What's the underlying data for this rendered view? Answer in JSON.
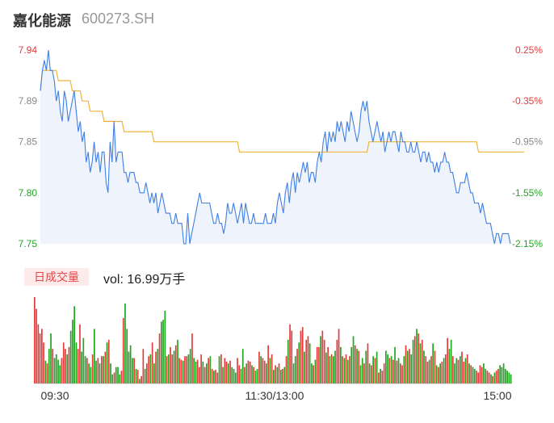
{
  "header": {
    "name": "嘉化能源",
    "code": "600273.SH"
  },
  "volume_panel": {
    "tab_label": "日成交量",
    "vol_text": "vol: 16.99万手"
  },
  "colors": {
    "price_line": "#3f7fe6",
    "price_fill": "#eef3fc",
    "avg_line": "#f0b43c",
    "up": "#e33b3b",
    "down": "#1fa51f",
    "neutral_label": "#888888"
  },
  "chart_data": [
    {
      "type": "line",
      "title": "嘉化能源 600273.SH",
      "xlabel": "",
      "ylabel": "",
      "x_ticks": [
        "09:30",
        "11:30/13:00",
        "15:00"
      ],
      "y_ticks": [
        "7.94",
        "7.89",
        "7.85",
        "7.80",
        "7.75"
      ],
      "y2_ticks": [
        "0.25%",
        "-0.35%",
        "-0.95%",
        "-1.55%",
        "-2.15%"
      ],
      "ylim": [
        7.75,
        7.94
      ],
      "prev_close": 7.92,
      "grid": false,
      "series": [
        {
          "values": [
            7.9,
            7.92,
            7.93,
            7.92,
            7.94,
            7.92,
            7.92,
            7.91,
            7.89,
            7.9,
            7.88,
            7.87,
            7.9,
            7.89,
            7.87,
            7.88,
            7.89,
            7.9,
            7.88,
            7.86,
            7.87,
            7.85,
            7.86,
            7.83,
            7.84,
            7.82,
            7.83,
            7.85,
            7.83,
            7.84,
            7.82,
            7.84,
            7.84,
            7.81,
            7.8,
            7.85,
            7.83,
            7.87,
            7.83,
            7.84,
            7.84,
            7.84,
            7.82,
            7.82,
            7.81,
            7.82,
            7.82,
            7.82,
            7.81,
            7.81,
            7.8,
            7.8,
            7.8,
            7.81,
            7.8,
            7.79,
            7.8,
            7.79,
            7.8,
            7.78,
            7.79,
            7.8,
            7.79,
            7.78,
            7.78,
            7.78,
            7.77,
            7.77,
            7.78,
            7.77,
            7.77,
            7.77,
            7.75,
            7.75,
            7.78,
            7.75,
            7.76,
            7.77,
            7.78,
            7.79,
            7.8,
            7.79,
            7.79,
            7.79,
            7.79,
            7.79,
            7.78,
            7.77,
            7.77,
            7.78,
            7.77,
            7.77,
            7.76,
            7.77,
            7.79,
            7.78,
            7.78,
            7.79,
            7.78,
            7.77,
            7.78,
            7.79,
            7.77,
            7.79,
            7.78,
            7.77,
            7.77,
            7.78,
            7.77,
            7.77,
            7.77,
            7.77,
            7.77,
            7.78,
            7.77,
            7.77,
            7.77,
            7.78,
            7.77,
            7.79,
            7.8,
            7.79,
            7.78,
            7.8,
            7.81,
            7.79,
            7.81,
            7.82,
            7.8,
            7.82,
            7.81,
            7.82,
            7.83,
            7.82,
            7.83,
            7.81,
            7.82,
            7.82,
            7.81,
            7.83,
            7.84,
            7.83,
            7.85,
            7.86,
            7.84,
            7.86,
            7.85,
            7.86,
            7.85,
            7.87,
            7.86,
            7.87,
            7.86,
            7.85,
            7.87,
            7.86,
            7.88,
            7.87,
            7.86,
            7.85,
            7.86,
            7.88,
            7.89,
            7.88,
            7.89,
            7.87,
            7.86,
            7.85,
            7.86,
            7.87,
            7.86,
            7.85,
            7.86,
            7.84,
            7.85,
            7.86,
            7.85,
            7.86,
            7.86,
            7.85,
            7.84,
            7.86,
            7.85,
            7.85,
            7.84,
            7.84,
            7.85,
            7.84,
            7.84,
            7.85,
            7.84,
            7.83,
            7.84,
            7.84,
            7.83,
            7.84,
            7.83,
            7.83,
            7.82,
            7.83,
            7.82,
            7.83,
            7.83,
            7.84,
            7.83,
            7.83,
            7.82,
            7.82,
            7.81,
            7.8,
            7.8,
            7.81,
            7.81,
            7.81,
            7.82,
            7.81,
            7.8,
            7.8,
            7.79,
            7.79,
            7.79,
            7.78,
            7.79,
            7.78,
            7.77,
            7.77,
            7.77,
            7.76,
            7.75,
            7.76,
            7.76,
            7.75,
            7.76,
            7.76,
            7.76,
            7.76,
            7.75
          ]
        },
        {
          "values": [
            7.9,
            7.92,
            7.92,
            7.92,
            7.92,
            7.92,
            7.92,
            7.92,
            7.92,
            7.91,
            7.91,
            7.91,
            7.91,
            7.91,
            7.91,
            7.91,
            7.9,
            7.9,
            7.9,
            7.9,
            7.9,
            7.89,
            7.89,
            7.89,
            7.89,
            7.88,
            7.88,
            7.88,
            7.88,
            7.88,
            7.88,
            7.88,
            7.87,
            7.87,
            7.87,
            7.87,
            7.87,
            7.87,
            7.87,
            7.87,
            7.87,
            7.87,
            7.86,
            7.86,
            7.86,
            7.86,
            7.86,
            7.86,
            7.86,
            7.86,
            7.86,
            7.86,
            7.86,
            7.86,
            7.86,
            7.86,
            7.86,
            7.85,
            7.85,
            7.85,
            7.85,
            7.85,
            7.85,
            7.85,
            7.85,
            7.85,
            7.85,
            7.85,
            7.85,
            7.85,
            7.85,
            7.85,
            7.85,
            7.85,
            7.85,
            7.85,
            7.85,
            7.85,
            7.85,
            7.85,
            7.85,
            7.85,
            7.85,
            7.85,
            7.85,
            7.85,
            7.85,
            7.85,
            7.85,
            7.85,
            7.85,
            7.85,
            7.85,
            7.85,
            7.85,
            7.85,
            7.85,
            7.85,
            7.85,
            7.85,
            7.84,
            7.84,
            7.84,
            7.84,
            7.84,
            7.84,
            7.84,
            7.84,
            7.84,
            7.84,
            7.84,
            7.84,
            7.84,
            7.84,
            7.84,
            7.84,
            7.84,
            7.84,
            7.84,
            7.84,
            7.84,
            7.84,
            7.84,
            7.84,
            7.84,
            7.84,
            7.84,
            7.84,
            7.84,
            7.84,
            7.84,
            7.84,
            7.84,
            7.84,
            7.84,
            7.84,
            7.84,
            7.84,
            7.84,
            7.84,
            7.84,
            7.84,
            7.84,
            7.84,
            7.84,
            7.84,
            7.84,
            7.84,
            7.84,
            7.84,
            7.84,
            7.84,
            7.84,
            7.84,
            7.84,
            7.84,
            7.84,
            7.84,
            7.84,
            7.84,
            7.84,
            7.84,
            7.84,
            7.84,
            7.84,
            7.85,
            7.85,
            7.85,
            7.85,
            7.85,
            7.85,
            7.85,
            7.85,
            7.85,
            7.85,
            7.85,
            7.85,
            7.85,
            7.85,
            7.85,
            7.85,
            7.85,
            7.85,
            7.85,
            7.85,
            7.85,
            7.85,
            7.85,
            7.85,
            7.85,
            7.85,
            7.85,
            7.85,
            7.85,
            7.85,
            7.85,
            7.85,
            7.85,
            7.85,
            7.85,
            7.85,
            7.85,
            7.85,
            7.85,
            7.85,
            7.85,
            7.85,
            7.85,
            7.85,
            7.85,
            7.85,
            7.85,
            7.85,
            7.85,
            7.85,
            7.85,
            7.85,
            7.85,
            7.85,
            7.85,
            7.84,
            7.84,
            7.84,
            7.84,
            7.84,
            7.84,
            7.84,
            7.84,
            7.84,
            7.84,
            7.84,
            7.84,
            7.84,
            7.84,
            7.84,
            7.84,
            7.84,
            7.84,
            7.84,
            7.84,
            7.84,
            7.84,
            7.84,
            7.84
          ]
        }
      ]
    },
    {
      "type": "bar",
      "title": "日成交量",
      "xlabel": "",
      "ylabel": "",
      "values": [
        95,
        82,
        65,
        55,
        60,
        45,
        25,
        22,
        38,
        55,
        38,
        28,
        32,
        26,
        20,
        28,
        45,
        38,
        32,
        40,
        58,
        70,
        85,
        45,
        38,
        65,
        35,
        50,
        30,
        28,
        22,
        18,
        32,
        60,
        25,
        28,
        22,
        30,
        30,
        35,
        45,
        48,
        22,
        10,
        12,
        18,
        18,
        10,
        14,
        72,
        88,
        60,
        35,
        42,
        28,
        28,
        16,
        15,
        5,
        8,
        38,
        16,
        22,
        30,
        32,
        45,
        22,
        35,
        38,
        55,
        68,
        70,
        80,
        30,
        32,
        40,
        32,
        36,
        42,
        48,
        28,
        26,
        25,
        30,
        30,
        32,
        38,
        55,
        28,
        24,
        26,
        18,
        32,
        24,
        18,
        22,
        28,
        30,
        16,
        14,
        15,
        12,
        30,
        32,
        18,
        28,
        24,
        22,
        25,
        18,
        16,
        12,
        28,
        20,
        16,
        38,
        18,
        22,
        25,
        24,
        20,
        18,
        14,
        16,
        35,
        30,
        28,
        25,
        22,
        42,
        28,
        32,
        15,
        20,
        18,
        22,
        15,
        16,
        18,
        30,
        48,
        65,
        58,
        22,
        30,
        38,
        45,
        58,
        62,
        35,
        48,
        52,
        44,
        22,
        20,
        26,
        40,
        40,
        52,
        58,
        48,
        34,
        40,
        30,
        32,
        30,
        36,
        48,
        60,
        40,
        30,
        28,
        32,
        26,
        30,
        40,
        52,
        42,
        38,
        36,
        20,
        28,
        22,
        36,
        44,
        22,
        20,
        30,
        28,
        35,
        12,
        16,
        14,
        22,
        36,
        32,
        28,
        30,
        26,
        40,
        25,
        28,
        22,
        20,
        30,
        42,
        36,
        38,
        32,
        48,
        52,
        60,
        55,
        44,
        48,
        36,
        30,
        24,
        26,
        30,
        44,
        36,
        20,
        18,
        22,
        24,
        28,
        32,
        50,
        38,
        48,
        30,
        22,
        28,
        26,
        30,
        35,
        24,
        28,
        32,
        22,
        20,
        18,
        16,
        14,
        12,
        20,
        18,
        22,
        16,
        14,
        12,
        10,
        8,
        12,
        14,
        16,
        20,
        18,
        22,
        16,
        14,
        12,
        10
      ],
      "directions": [
        "u",
        "u",
        "u",
        "u",
        "u",
        "u",
        "d",
        "u",
        "d",
        "d",
        "u",
        "d",
        "d",
        "d",
        "d",
        "u",
        "u",
        "u",
        "d",
        "u",
        "d",
        "d",
        "d",
        "d",
        "u",
        "u",
        "d",
        "d",
        "d",
        "u",
        "d",
        "d",
        "u",
        "d",
        "d",
        "u",
        "d",
        "u",
        "d",
        "u",
        "d",
        "u",
        "d",
        "d",
        "u",
        "d",
        "d",
        "d",
        "u",
        "u",
        "d",
        "d",
        "d",
        "d",
        "d",
        "u",
        "d",
        "u",
        "d",
        "u",
        "u",
        "d",
        "u",
        "u",
        "d",
        "u",
        "d",
        "u",
        "d",
        "u",
        "d",
        "d",
        "d",
        "u",
        "d",
        "u",
        "u",
        "d",
        "u",
        "d",
        "u",
        "u",
        "d",
        "u",
        "u",
        "d",
        "d",
        "u",
        "d",
        "d",
        "u",
        "u",
        "u",
        "d",
        "u",
        "d",
        "u",
        "d",
        "u",
        "d",
        "u",
        "u",
        "d",
        "u",
        "d",
        "u",
        "u",
        "d",
        "u",
        "d",
        "d",
        "d",
        "u",
        "u",
        "d",
        "d",
        "u",
        "d",
        "u",
        "u",
        "d",
        "u",
        "d",
        "d",
        "u",
        "d",
        "u",
        "u",
        "d",
        "u",
        "d",
        "u",
        "d",
        "u",
        "d",
        "u",
        "d",
        "u",
        "d",
        "u",
        "d",
        "u",
        "u",
        "d",
        "d",
        "u",
        "d",
        "u",
        "u",
        "d",
        "u",
        "u",
        "d",
        "d",
        "u",
        "d",
        "u",
        "u",
        "d",
        "u",
        "u",
        "d",
        "u",
        "d",
        "u",
        "d",
        "d",
        "u",
        "u",
        "d",
        "u",
        "d",
        "u",
        "d",
        "u",
        "d",
        "d",
        "u",
        "d",
        "u",
        "d",
        "d",
        "u",
        "d",
        "u",
        "d",
        "u",
        "d",
        "u",
        "d",
        "u",
        "d",
        "u",
        "u",
        "d",
        "d",
        "u",
        "d",
        "u",
        "d",
        "u",
        "d",
        "u",
        "u",
        "d",
        "u",
        "d",
        "u",
        "d",
        "d",
        "u",
        "d",
        "u",
        "d",
        "u",
        "d",
        "u",
        "u",
        "d",
        "u",
        "d",
        "u",
        "d",
        "u",
        "d",
        "u",
        "d",
        "u",
        "u",
        "d",
        "d",
        "u",
        "d",
        "d",
        "u",
        "d",
        "u",
        "u",
        "d",
        "u",
        "d",
        "u",
        "d",
        "d",
        "u",
        "u",
        "u",
        "u",
        "d",
        "d",
        "u",
        "u",
        "d",
        "u",
        "d",
        "u",
        "u"
      ],
      "x_ticks": [
        "09:30",
        "11:30/13:00",
        "15:00"
      ]
    }
  ]
}
